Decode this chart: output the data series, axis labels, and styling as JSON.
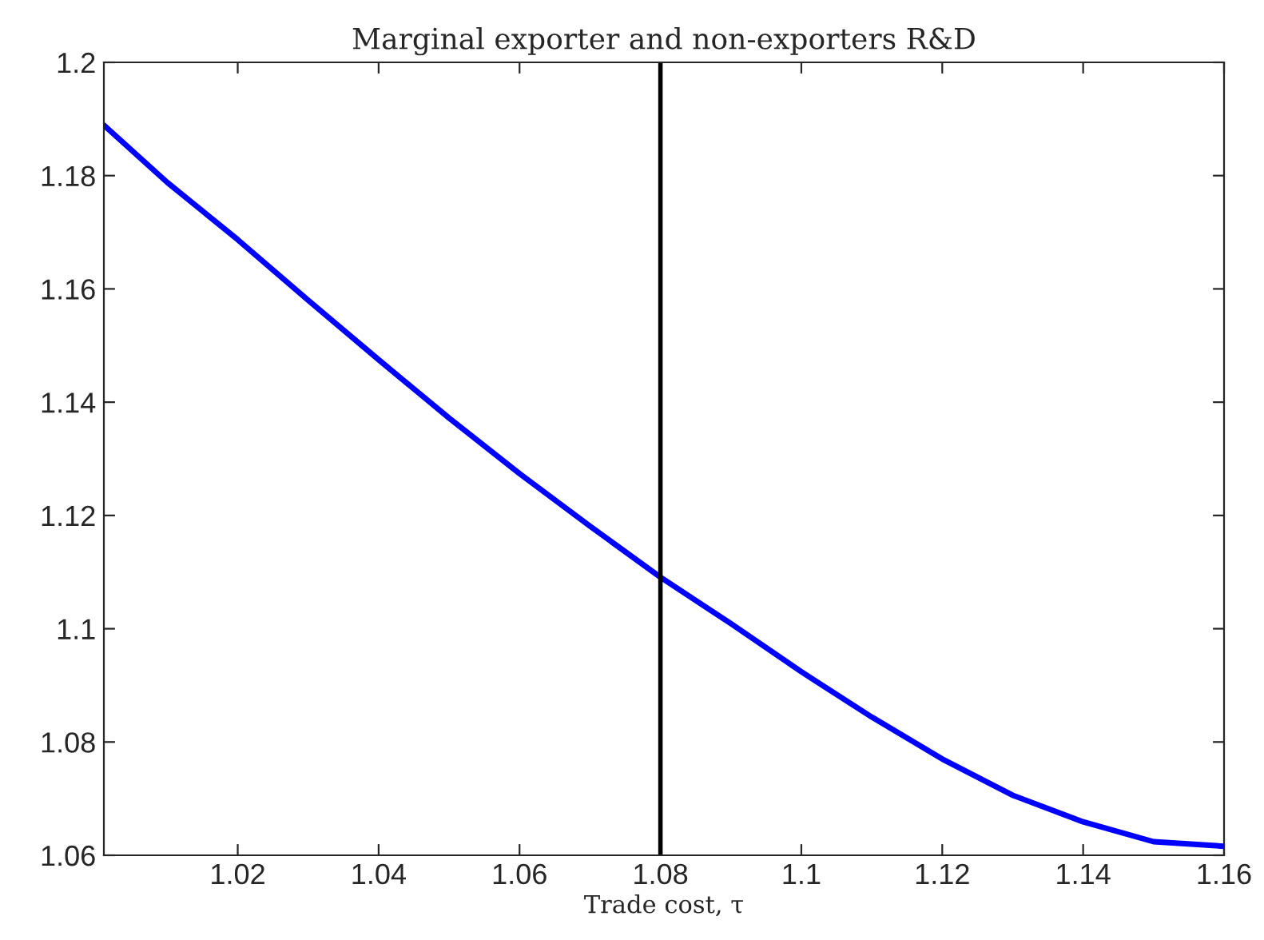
{
  "chart_data": {
    "type": "line",
    "title": "Marginal exporter and non-exporters R&D",
    "xlabel": "Trade cost, τ",
    "x": [
      1.001,
      1.01,
      1.02,
      1.03,
      1.04,
      1.05,
      1.06,
      1.07,
      1.08,
      1.09,
      1.1,
      1.11,
      1.12,
      1.13,
      1.14,
      1.15,
      1.16
    ],
    "series": [
      {
        "color": "#0000ff",
        "values": [
          1.1889,
          1.1788,
          1.1687,
          1.158,
          1.1475,
          1.1372,
          1.1274,
          1.1181,
          1.1091,
          1.1009,
          1.0924,
          1.0844,
          1.077,
          1.0706,
          1.0659,
          1.0624,
          1.0616
        ]
      }
    ],
    "ref_lines": [
      {
        "axis": "x",
        "value": 1.08,
        "color": "#000000"
      }
    ],
    "xlim": [
      1.001,
      1.16
    ],
    "xticks": [
      1.02,
      1.04,
      1.06,
      1.08,
      1.1,
      1.12,
      1.14,
      1.16
    ],
    "ylim": [
      1.06,
      1.2
    ],
    "yticks": [
      1.06,
      1.08,
      1.1,
      1.12,
      1.14,
      1.16,
      1.18,
      1.2
    ],
    "grid": false,
    "marker": "none",
    "line_style": "solid"
  }
}
